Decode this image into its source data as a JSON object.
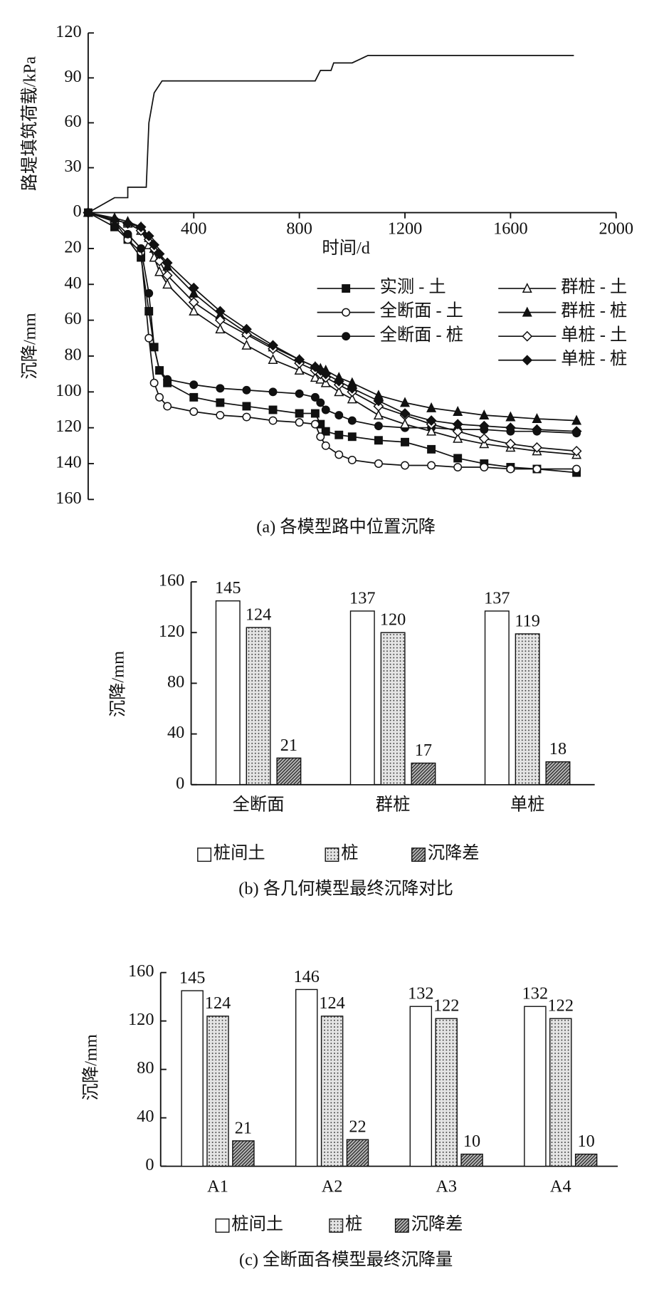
{
  "chart_data": [
    {
      "type": "line",
      "ylabel": "路堤填筑荷载/kPa",
      "x": [
        0,
        100,
        150,
        150,
        220,
        230,
        250,
        280,
        860,
        880,
        920,
        930,
        1000,
        1060,
        1840
      ],
      "series": [
        {
          "color": "#111111",
          "values": [
            0,
            10,
            10,
            17,
            17,
            60,
            80,
            88,
            88,
            95,
            95,
            100,
            100,
            105,
            105
          ]
        }
      ],
      "xlim": [
        0,
        2000
      ],
      "ylim": [
        0,
        120
      ],
      "yticks": [
        0,
        30,
        60,
        90,
        120
      ]
    },
    {
      "type": "line",
      "xlabel": "时间/d",
      "ylabel": "沉降/mm",
      "caption": "(a) 各模型路中位置沉降",
      "x": [
        0,
        100,
        150,
        200,
        230,
        250,
        270,
        300,
        400,
        500,
        600,
        700,
        800,
        860,
        880,
        900,
        950,
        1000,
        1100,
        1200,
        1300,
        1400,
        1500,
        1600,
        1700,
        1850
      ],
      "series": [
        {
          "name": "实测 - 土",
          "color": "#111111",
          "marker": "square",
          "filled": true,
          "values": [
            0,
            8,
            15,
            25,
            55,
            75,
            88,
            95,
            103,
            106,
            108,
            110,
            112,
            112,
            118,
            122,
            124,
            125,
            127,
            128,
            132,
            137,
            140,
            142,
            143,
            145
          ]
        },
        {
          "name": "全断面 - 土",
          "color": "#111111",
          "marker": "circle",
          "filled": false,
          "values": [
            0,
            5,
            15,
            22,
            70,
            95,
            103,
            108,
            111,
            113,
            114,
            116,
            117,
            118,
            125,
            130,
            135,
            138,
            140,
            141,
            141,
            142,
            142,
            143,
            143,
            143
          ]
        },
        {
          "name": "全断面 - 桩",
          "color": "#111111",
          "marker": "circle",
          "filled": true,
          "values": [
            0,
            5,
            12,
            20,
            45,
            75,
            88,
            93,
            96,
            98,
            99,
            100,
            101,
            103,
            106,
            110,
            113,
            116,
            119,
            120,
            120,
            121,
            121,
            122,
            122,
            123
          ]
        },
        {
          "name": "群桩 - 土",
          "color": "#111111",
          "marker": "triangle",
          "filled": false,
          "values": [
            0,
            4,
            6,
            10,
            18,
            25,
            33,
            40,
            55,
            65,
            74,
            82,
            88,
            92,
            93,
            95,
            100,
            104,
            113,
            118,
            122,
            126,
            129,
            131,
            133,
            135
          ]
        },
        {
          "name": "群桩 - 桩",
          "color": "#111111",
          "marker": "triangle",
          "filled": true,
          "values": [
            0,
            3,
            5,
            8,
            14,
            20,
            25,
            30,
            45,
            57,
            67,
            75,
            82,
            86,
            87,
            88,
            92,
            95,
            102,
            106,
            109,
            111,
            113,
            114,
            115,
            116
          ]
        },
        {
          "name": "单桩 - 土",
          "color": "#111111",
          "marker": "diamond",
          "filled": false,
          "values": [
            0,
            4,
            6,
            10,
            15,
            20,
            27,
            35,
            50,
            60,
            68,
            76,
            84,
            88,
            90,
            92,
            96,
            100,
            108,
            113,
            118,
            122,
            126,
            129,
            131,
            133
          ]
        },
        {
          "name": "单桩 - 桩",
          "color": "#111111",
          "marker": "diamond",
          "filled": true,
          "values": [
            0,
            4,
            6,
            8,
            13,
            18,
            23,
            28,
            42,
            55,
            65,
            74,
            82,
            86,
            88,
            90,
            94,
            98,
            105,
            112,
            116,
            118,
            119,
            120,
            121,
            122
          ]
        }
      ],
      "xlim": [
        0,
        2000
      ],
      "xticks": [
        400,
        800,
        1200,
        1600,
        2000
      ],
      "ylim": [
        0,
        160
      ],
      "yticks": [
        20,
        40,
        60,
        80,
        100,
        120,
        140,
        160
      ],
      "y_inverted": true
    },
    {
      "type": "bar",
      "ylabel": "沉降/mm",
      "caption": "(b) 各几何模型最终沉降对比",
      "categories": [
        "全断面",
        "群桩",
        "单桩"
      ],
      "series": [
        {
          "name": "桩间土",
          "color": "#ffffff",
          "values": [
            145,
            137,
            137
          ]
        },
        {
          "name": "桩",
          "color": "#e4e4e4",
          "pattern": "dots",
          "values": [
            124,
            120,
            119
          ]
        },
        {
          "name": "沉降差",
          "color": "#bbbbbb",
          "pattern": "hatch",
          "values": [
            21,
            17,
            18
          ]
        }
      ],
      "ylim": [
        0,
        160
      ],
      "yticks": [
        0,
        40,
        80,
        120,
        160
      ]
    },
    {
      "type": "bar",
      "ylabel": "沉降/mm",
      "caption": "(c) 全断面各模型最终沉降量",
      "categories": [
        "A1",
        "A2",
        "A3",
        "A4"
      ],
      "series": [
        {
          "name": "桩间土",
          "color": "#ffffff",
          "values": [
            145,
            146,
            132,
            132
          ]
        },
        {
          "name": "桩",
          "color": "#e4e4e4",
          "pattern": "dots",
          "values": [
            124,
            124,
            122,
            122
          ]
        },
        {
          "name": "沉降差",
          "color": "#bbbbbb",
          "pattern": "hatch",
          "values": [
            21,
            22,
            10,
            10
          ]
        }
      ],
      "ylim": [
        0,
        160
      ],
      "yticks": [
        0,
        40,
        80,
        120,
        160
      ]
    }
  ]
}
